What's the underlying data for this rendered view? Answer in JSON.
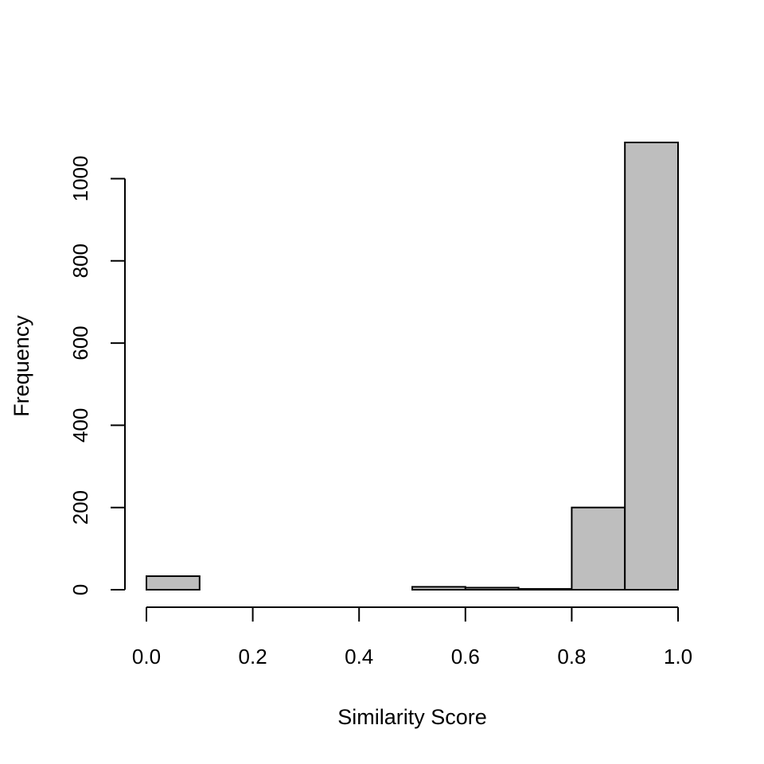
{
  "chart_data": {
    "type": "bar",
    "title": "",
    "xlabel": "Similarity Score",
    "ylabel": "Frequency",
    "bin_edges": [
      0.0,
      0.1,
      0.2,
      0.3,
      0.4,
      0.5,
      0.6,
      0.7,
      0.8,
      0.9,
      1.0
    ],
    "values": [
      33,
      0,
      0,
      0,
      0,
      7,
      5,
      2,
      200,
      1088
    ],
    "xlim": [
      0,
      1
    ],
    "ylim": [
      0,
      1088
    ],
    "x_ticks": [
      0.0,
      0.2,
      0.4,
      0.6,
      0.8,
      1.0
    ],
    "x_tick_labels": [
      "0.0",
      "0.2",
      "0.4",
      "0.6",
      "0.8",
      "1.0"
    ],
    "y_ticks": [
      0,
      200,
      400,
      600,
      800,
      1000
    ],
    "y_tick_labels": [
      "0",
      "200",
      "400",
      "600",
      "800",
      "1000"
    ],
    "bar_fill": "#bebebe",
    "bar_stroke": "#000000",
    "grid": false,
    "legend": "none"
  }
}
